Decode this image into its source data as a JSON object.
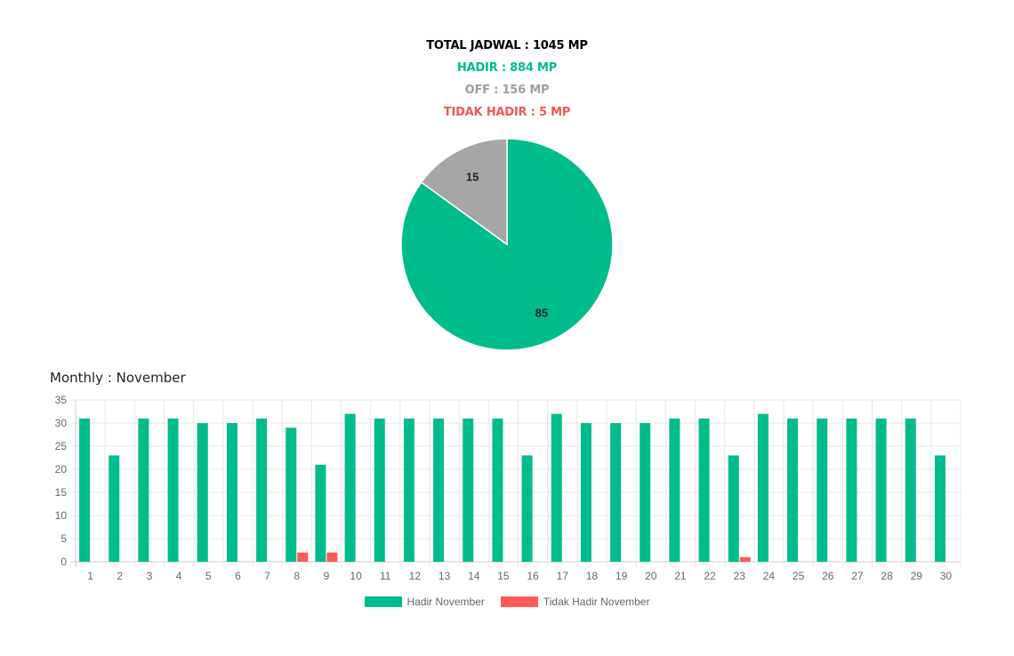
{
  "summary": {
    "total": "TOTAL JADWAL : 1045 MP",
    "hadir": "HADIR : 884 MP",
    "off": "OFF : 156 MP",
    "tidak_hadir": "TIDAK HADIR : 5 MP"
  },
  "colors": {
    "hadir": "#00bc8c",
    "off": "#a6a6a6",
    "tidak_hadir": "#ff5a5a"
  },
  "chart_data": [
    {
      "type": "pie",
      "slices": [
        {
          "label": "85",
          "value": 85,
          "color": "#00bc8c"
        },
        {
          "label": "15",
          "value": 15,
          "color": "#a6a6a6"
        }
      ]
    },
    {
      "type": "bar",
      "title": "Monthly : November",
      "categories": [
        "1",
        "2",
        "3",
        "4",
        "5",
        "6",
        "7",
        "8",
        "9",
        "10",
        "11",
        "12",
        "13",
        "14",
        "15",
        "16",
        "17",
        "18",
        "19",
        "20",
        "21",
        "22",
        "23",
        "24",
        "25",
        "26",
        "27",
        "28",
        "29",
        "30"
      ],
      "series": [
        {
          "name": "Hadir November",
          "color": "#00bc8c",
          "values": [
            31,
            23,
            31,
            31,
            30,
            30,
            31,
            29,
            21,
            32,
            31,
            31,
            31,
            31,
            31,
            23,
            32,
            30,
            30,
            30,
            31,
            31,
            23,
            32,
            31,
            31,
            31,
            31,
            31,
            23
          ]
        },
        {
          "name": "Tidak Hadir November",
          "color": "#ff5a5a",
          "values": [
            0,
            0,
            0,
            0,
            0,
            0,
            0,
            2,
            2,
            0,
            0,
            0,
            0,
            0,
            0,
            0,
            0,
            0,
            0,
            0,
            0,
            0,
            1,
            0,
            0,
            0,
            0,
            0,
            0,
            0
          ]
        }
      ],
      "ylim": [
        0,
        35
      ],
      "yticks": [
        0,
        5,
        10,
        15,
        20,
        25,
        30,
        35
      ],
      "grid": true,
      "legend": "bottom"
    }
  ]
}
